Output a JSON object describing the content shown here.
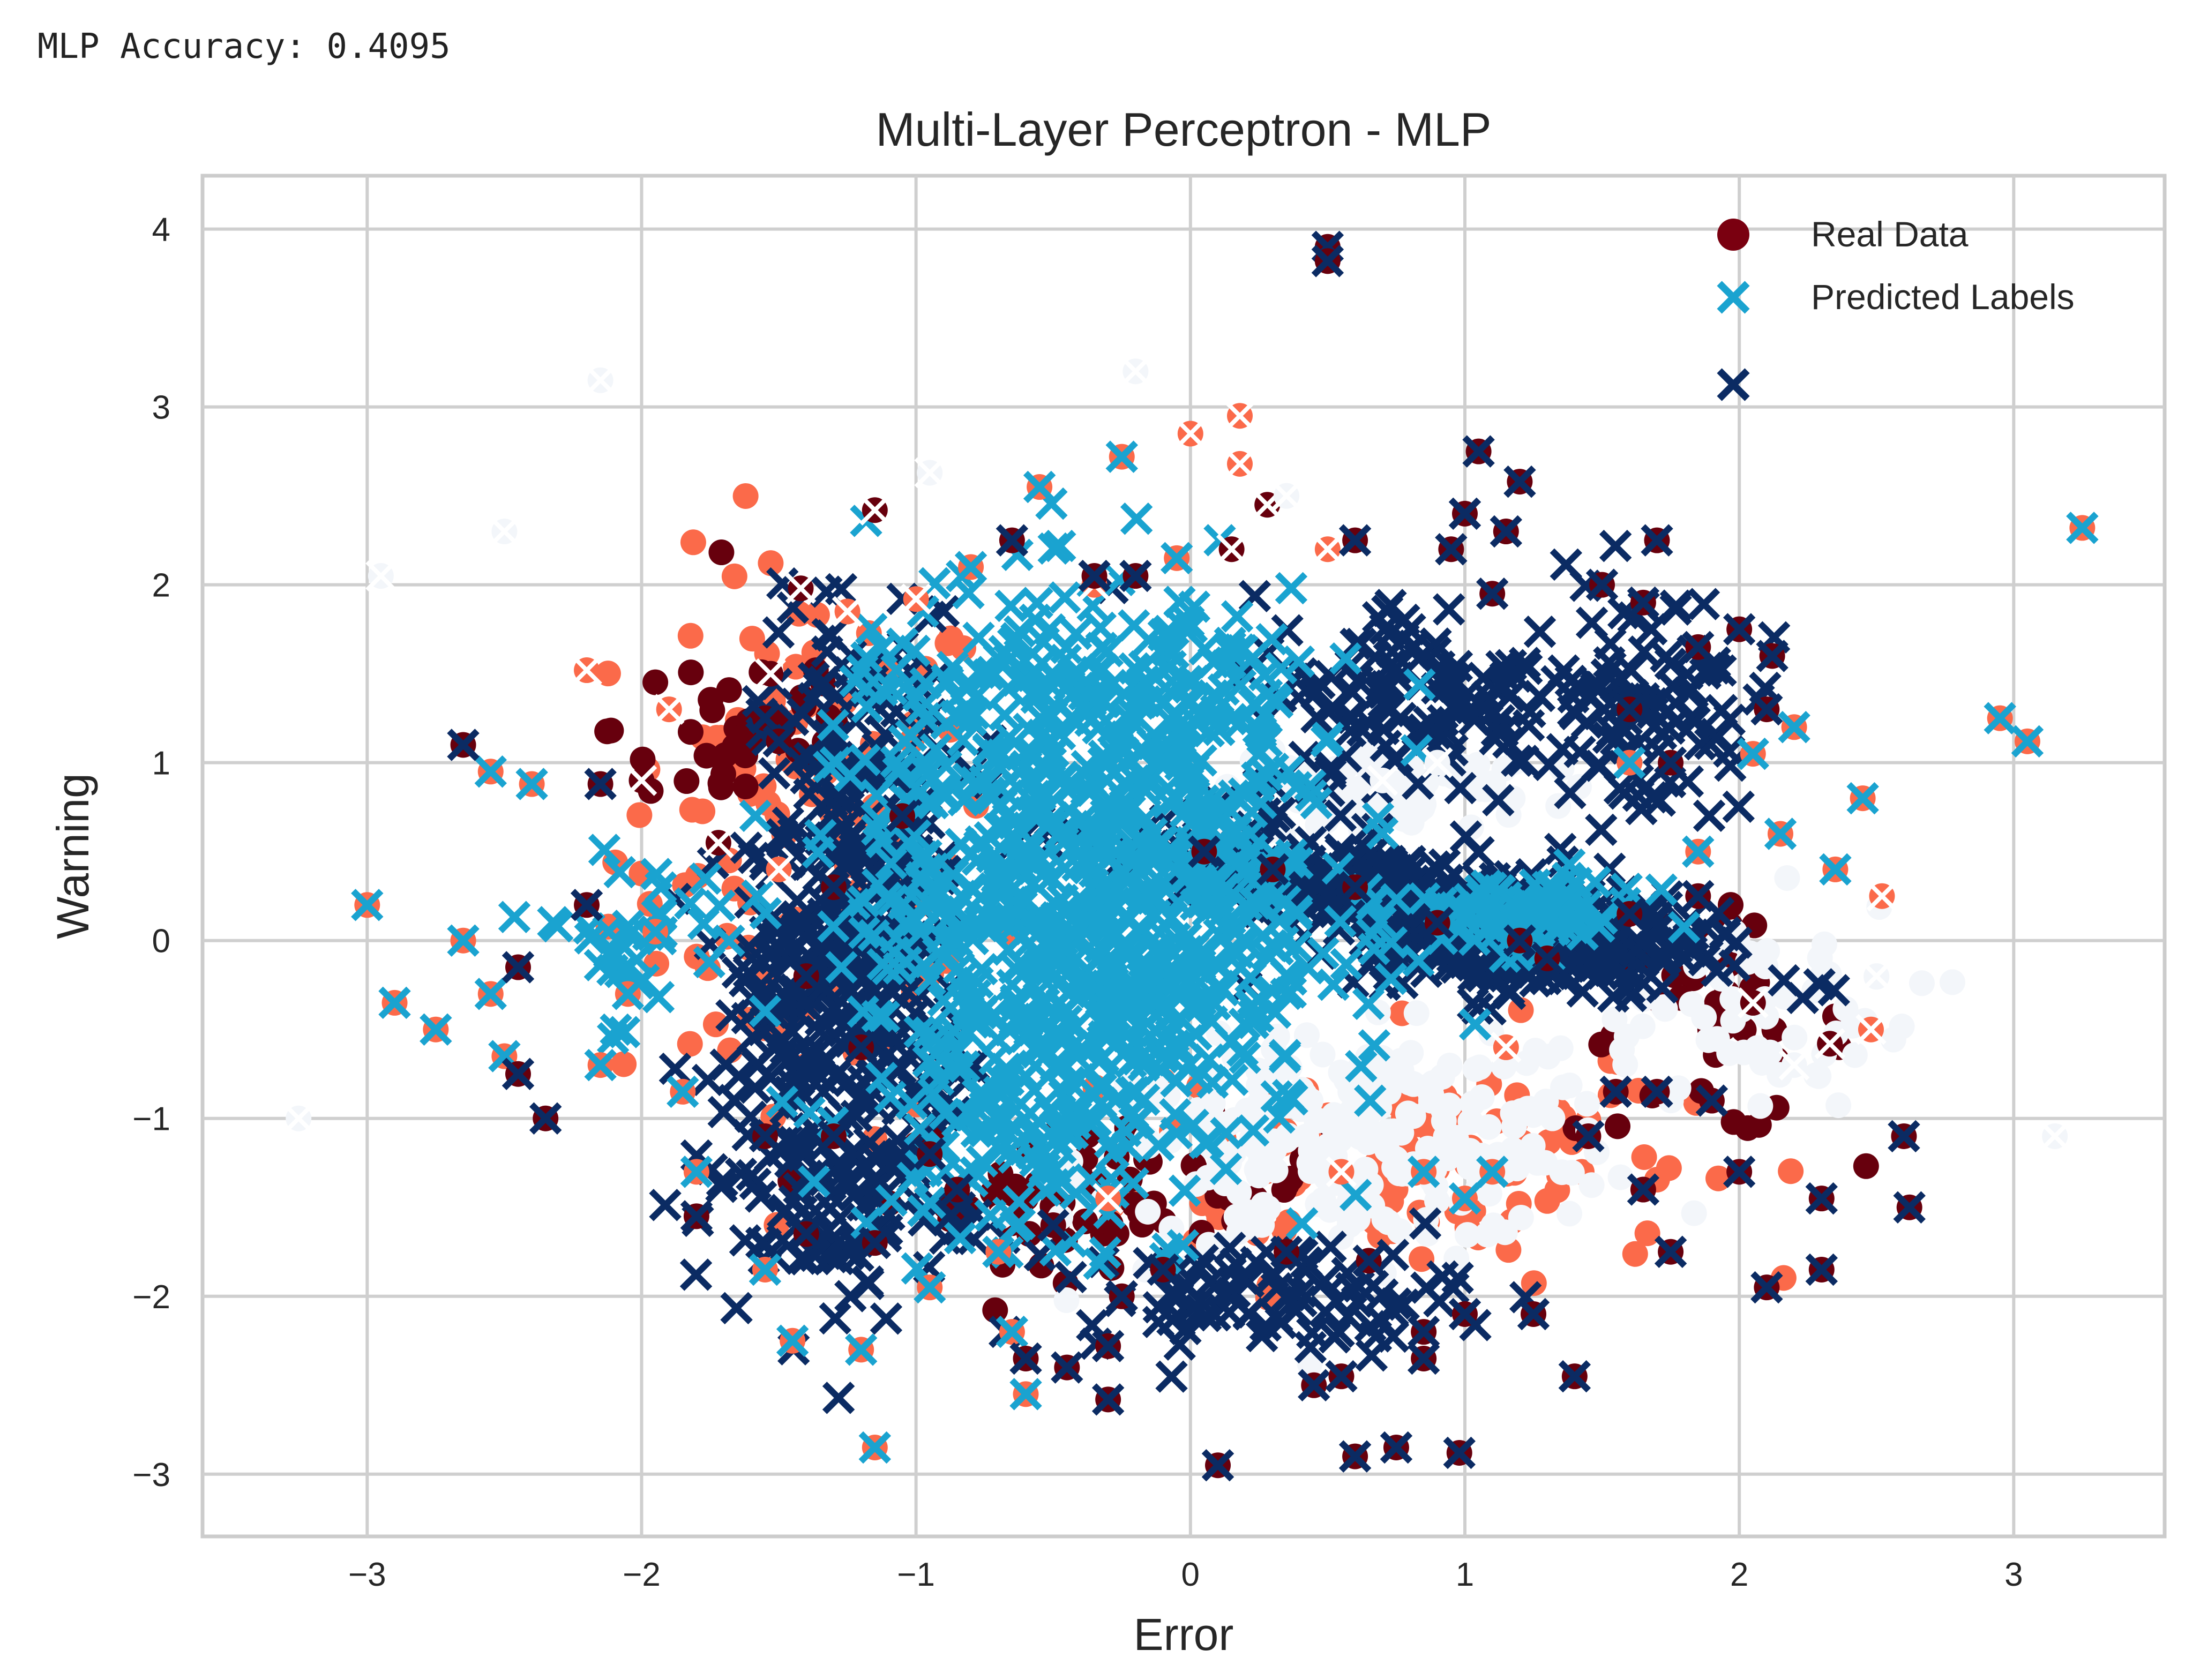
{
  "header": {
    "accuracy_text": "MLP Accuracy: 0.4095"
  },
  "chart_data": {
    "type": "scatter",
    "title": "Multi-Layer Perceptron - MLP",
    "xlabel": "Error",
    "ylabel": "Warning",
    "xlim": [
      -3.6,
      3.55
    ],
    "ylim": [
      -3.35,
      4.3
    ],
    "xticks": [
      -3,
      -2,
      -1,
      0,
      1,
      2,
      3
    ],
    "yticks": [
      -3,
      -2,
      -1,
      0,
      1,
      2,
      3,
      4
    ],
    "xtick_labels": [
      "−3",
      "−2",
      "−1",
      "0",
      "1",
      "2",
      "3"
    ],
    "ytick_labels": [
      "−3",
      "−2",
      "−1",
      "0",
      "1",
      "2",
      "3",
      "4"
    ],
    "grid": true,
    "legend_position": "top-right",
    "legend": [
      {
        "label": "Real Data",
        "marker": "circle",
        "color": "#7a0010"
      },
      {
        "label": "Predicted Labels",
        "marker": "x",
        "color": "#1aa3d0"
      },
      {
        "label": "",
        "marker": "x",
        "color": "#0b2b63"
      }
    ],
    "colors": {
      "dark_red": "#67000d",
      "salmon": "#fb6a4a",
      "pale": "#f3f6fa",
      "light_blue": "#1aa3d0",
      "navy": "#0b2b63"
    },
    "series": [
      {
        "name": "Real Data (sample)",
        "marker": "circle",
        "points": [
          [
            -1.15,
            2.42,
            "dark_red"
          ],
          [
            -1.42,
            1.98,
            "dark_red"
          ],
          [
            -1.53,
            1.5,
            "dark_red"
          ],
          [
            -2.0,
            0.9,
            "dark_red"
          ],
          [
            -1.72,
            0.55,
            "dark_red"
          ],
          [
            0.15,
            2.2,
            "dark_red"
          ],
          [
            0.28,
            2.45,
            "dark_red"
          ],
          [
            2.33,
            -0.58,
            "dark_red"
          ],
          [
            2.05,
            -0.35,
            "dark_red"
          ],
          [
            -2.2,
            1.52,
            "salmon"
          ],
          [
            -1.9,
            1.3,
            "salmon"
          ],
          [
            0.0,
            2.85,
            "salmon"
          ],
          [
            0.18,
            2.95,
            "salmon"
          ],
          [
            0.18,
            2.68,
            "salmon"
          ],
          [
            -1.25,
            1.85,
            "salmon"
          ],
          [
            -1.5,
            0.4,
            "salmon"
          ],
          [
            2.52,
            0.25,
            "salmon"
          ],
          [
            2.48,
            -0.5,
            "salmon"
          ],
          [
            0.5,
            2.2,
            "salmon"
          ],
          [
            -1.0,
            1.92,
            "salmon"
          ],
          [
            -0.35,
            2.0,
            "salmon"
          ],
          [
            1.15,
            -0.6,
            "salmon"
          ],
          [
            0.55,
            -1.3,
            "salmon"
          ],
          [
            -0.3,
            -1.45,
            "salmon"
          ],
          [
            -2.15,
            3.15,
            "pale"
          ],
          [
            -2.95,
            2.05,
            "pale"
          ],
          [
            -2.5,
            2.3,
            "pale"
          ],
          [
            -0.95,
            2.63,
            "pale"
          ],
          [
            -0.2,
            3.2,
            "pale"
          ],
          [
            0.35,
            2.5,
            "pale"
          ],
          [
            -3.25,
            -1.0,
            "pale"
          ],
          [
            3.15,
            -1.1,
            "pale"
          ],
          [
            0.7,
            0.9,
            "pale"
          ],
          [
            0.9,
            1.0,
            "pale"
          ],
          [
            2.2,
            -0.7,
            "pale"
          ],
          [
            2.5,
            -0.2,
            "pale"
          ]
        ]
      },
      {
        "name": "Predicted Labels (light)",
        "marker": "x",
        "points": [
          [
            -3.0,
            0.2,
            "light_blue"
          ],
          [
            -2.9,
            -0.35,
            "light_blue"
          ],
          [
            -2.75,
            -0.5,
            "light_blue"
          ],
          [
            -2.65,
            0.0,
            "light_blue"
          ],
          [
            -2.55,
            -0.3,
            "light_blue"
          ],
          [
            -2.5,
            -0.65,
            "light_blue"
          ],
          [
            -2.55,
            0.95,
            "light_blue"
          ],
          [
            -2.4,
            0.88,
            "light_blue"
          ],
          [
            -2.15,
            -0.7,
            "light_blue"
          ],
          [
            -2.05,
            -0.3,
            "light_blue"
          ],
          [
            -1.95,
            0.05,
            "light_blue"
          ],
          [
            -1.8,
            -1.3,
            "light_blue"
          ],
          [
            -1.85,
            -0.85,
            "light_blue"
          ],
          [
            -1.55,
            -1.85,
            "light_blue"
          ],
          [
            -1.45,
            -2.25,
            "light_blue"
          ],
          [
            -1.2,
            -2.3,
            "light_blue"
          ],
          [
            -1.15,
            -2.85,
            "light_blue"
          ],
          [
            -0.65,
            -2.2,
            "light_blue"
          ],
          [
            -0.6,
            -2.55,
            "light_blue"
          ],
          [
            -0.95,
            -1.95,
            "light_blue"
          ],
          [
            -0.7,
            -1.75,
            "light_blue"
          ],
          [
            -0.05,
            2.15,
            "light_blue"
          ],
          [
            -0.55,
            2.55,
            "light_blue"
          ],
          [
            -0.25,
            2.72,
            "light_blue"
          ],
          [
            -0.8,
            2.1,
            "light_blue"
          ],
          [
            0.85,
            -1.3,
            "light_blue"
          ],
          [
            1.0,
            -1.45,
            "light_blue"
          ],
          [
            1.1,
            -1.3,
            "light_blue"
          ],
          [
            1.6,
            1.0,
            "light_blue"
          ],
          [
            2.05,
            1.05,
            "light_blue"
          ],
          [
            2.2,
            1.2,
            "light_blue"
          ],
          [
            2.45,
            0.8,
            "light_blue"
          ],
          [
            2.35,
            0.4,
            "light_blue"
          ],
          [
            1.85,
            0.5,
            "light_blue"
          ],
          [
            3.25,
            2.32,
            "light_blue"
          ],
          [
            2.95,
            1.25,
            "light_blue"
          ],
          [
            3.05,
            1.12,
            "light_blue"
          ],
          [
            2.15,
            0.6,
            "light_blue"
          ]
        ]
      },
      {
        "name": "Predicted Labels (dark)",
        "marker": "x",
        "points": [
          [
            0.5,
            3.9,
            "navy"
          ],
          [
            0.5,
            3.82,
            "navy"
          ],
          [
            1.05,
            2.75,
            "navy"
          ],
          [
            1.2,
            2.58,
            "navy"
          ],
          [
            1.0,
            2.4,
            "navy"
          ],
          [
            1.15,
            2.3,
            "navy"
          ],
          [
            0.95,
            2.2,
            "navy"
          ],
          [
            1.1,
            1.95,
            "navy"
          ],
          [
            0.6,
            2.25,
            "navy"
          ],
          [
            -0.65,
            2.25,
            "navy"
          ],
          [
            -0.35,
            2.05,
            "navy"
          ],
          [
            -0.2,
            2.05,
            "navy"
          ],
          [
            -1.55,
            1.25,
            "navy"
          ],
          [
            -1.5,
            1.12,
            "navy"
          ],
          [
            -2.65,
            1.1,
            "navy"
          ],
          [
            -2.45,
            -0.15,
            "navy"
          ],
          [
            -2.2,
            0.2,
            "navy"
          ],
          [
            -2.15,
            0.88,
            "navy"
          ],
          [
            -2.45,
            -0.75,
            "navy"
          ],
          [
            -2.35,
            -1.0,
            "navy"
          ],
          [
            -1.55,
            -1.1,
            "navy"
          ],
          [
            -1.8,
            -1.55,
            "navy"
          ],
          [
            -1.4,
            -1.65,
            "navy"
          ],
          [
            -1.15,
            -1.7,
            "navy"
          ],
          [
            -0.6,
            -2.35,
            "navy"
          ],
          [
            -0.3,
            -2.28,
            "navy"
          ],
          [
            -0.45,
            -2.4,
            "navy"
          ],
          [
            -0.3,
            -2.58,
            "navy"
          ],
          [
            -0.25,
            -2.0,
            "navy"
          ],
          [
            0.1,
            -2.95,
            "navy"
          ],
          [
            0.45,
            -2.5,
            "navy"
          ],
          [
            0.55,
            -2.45,
            "navy"
          ],
          [
            0.6,
            -2.9,
            "navy"
          ],
          [
            0.75,
            -2.85,
            "navy"
          ],
          [
            0.98,
            -2.88,
            "navy"
          ],
          [
            0.85,
            -2.2,
            "navy"
          ],
          [
            1.0,
            -2.1,
            "navy"
          ],
          [
            1.25,
            -2.1,
            "navy"
          ],
          [
            1.4,
            -2.45,
            "navy"
          ],
          [
            2.3,
            -1.45,
            "navy"
          ],
          [
            2.62,
            -1.5,
            "navy"
          ],
          [
            2.6,
            -1.1,
            "navy"
          ],
          [
            2.3,
            -1.85,
            "navy"
          ],
          [
            2.1,
            -1.95,
            "navy"
          ],
          [
            2.0,
            1.75,
            "navy"
          ],
          [
            2.12,
            1.6,
            "navy"
          ],
          [
            1.85,
            1.65,
            "navy"
          ],
          [
            1.7,
            2.25,
            "navy"
          ],
          [
            1.65,
            1.9,
            "navy"
          ],
          [
            1.5,
            2.0,
            "navy"
          ],
          [
            1.6,
            1.3,
            "navy"
          ],
          [
            1.75,
            1.0,
            "navy"
          ],
          [
            1.85,
            0.25,
            "navy"
          ],
          [
            1.6,
            0.15,
            "navy"
          ],
          [
            1.55,
            -0.85,
            "navy"
          ],
          [
            1.7,
            -0.85,
            "navy"
          ],
          [
            1.45,
            -1.1,
            "navy"
          ],
          [
            1.65,
            -1.4,
            "navy"
          ],
          [
            1.9,
            -0.9,
            "navy"
          ],
          [
            2.0,
            -1.3,
            "navy"
          ],
          [
            -0.1,
            -1.85,
            "navy"
          ],
          [
            0.35,
            -1.75,
            "navy"
          ],
          [
            0.65,
            -1.8,
            "navy"
          ],
          [
            0.85,
            -2.35,
            "navy"
          ],
          [
            -1.05,
            0.7,
            "navy"
          ],
          [
            -1.3,
            0.3,
            "navy"
          ],
          [
            -1.4,
            -0.2,
            "navy"
          ],
          [
            -1.2,
            -0.6,
            "navy"
          ],
          [
            -1.3,
            -1.1,
            "navy"
          ],
          [
            -0.95,
            -1.2,
            "navy"
          ],
          [
            0.05,
            0.5,
            "navy"
          ],
          [
            0.3,
            0.4,
            "navy"
          ],
          [
            0.6,
            0.3,
            "navy"
          ],
          [
            0.9,
            0.1,
            "navy"
          ],
          [
            1.2,
            0.0,
            "navy"
          ],
          [
            1.3,
            -0.1,
            "navy"
          ],
          [
            -0.85,
            -1.4,
            "navy"
          ],
          [
            -0.5,
            -1.6,
            "navy"
          ],
          [
            1.75,
            -1.75,
            "navy"
          ],
          [
            2.1,
            1.3,
            "navy"
          ]
        ]
      }
    ]
  }
}
